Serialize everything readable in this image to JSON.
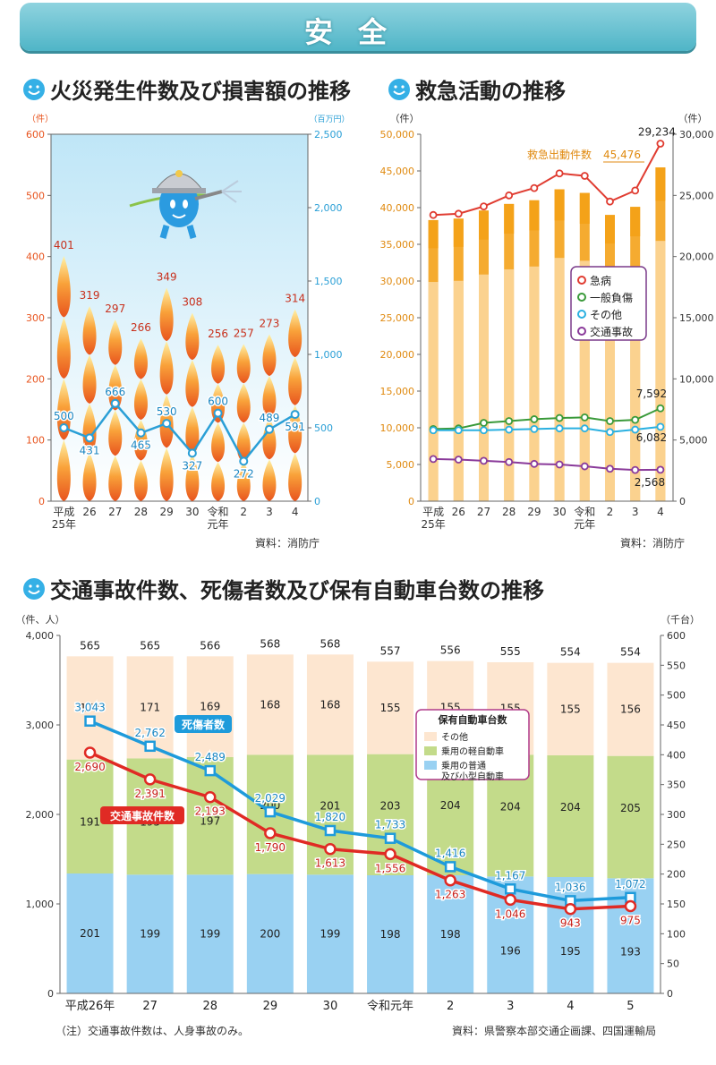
{
  "banner": {
    "title": "安全"
  },
  "fire": {
    "heading": "火災発生件数及び損害額の推移",
    "source": "資料：消防庁",
    "chart_data": {
      "type": "bar",
      "yunit_left": "（件）",
      "yunit_right": "（百万円）",
      "left_ticks": [
        "0",
        "100",
        "200",
        "300",
        "400",
        "500",
        "600"
      ],
      "right_ticks": [
        "0",
        "500",
        "1,000",
        "1,500",
        "2,000",
        "2,500"
      ],
      "left_max": 600,
      "right_max": 2500,
      "x_labels": [
        [
          "平成",
          "25年"
        ],
        [
          "26"
        ],
        [
          "27"
        ],
        [
          "28"
        ],
        [
          "29"
        ],
        [
          "30"
        ],
        [
          "令和",
          "元年"
        ],
        [
          "2"
        ],
        [
          "3"
        ],
        [
          "4"
        ]
      ],
      "fires": [
        401,
        319,
        297,
        266,
        349,
        308,
        256,
        257,
        273,
        314
      ],
      "damage": [
        500,
        431,
        666,
        465,
        530,
        327,
        600,
        272,
        489,
        591
      ],
      "colors": {
        "fire": "#e8541e",
        "damage": "#2a9fd6"
      }
    }
  },
  "ems": {
    "heading": "救急活動の推移",
    "source": "資料：消防庁",
    "chart_data": {
      "type": "bar-line",
      "yunit_left": "（件）",
      "yunit_right": "（件）",
      "left_ticks": [
        "0",
        "5,000",
        "10,000",
        "15,000",
        "20,000",
        "25,000",
        "30,000",
        "35,000",
        "40,000",
        "45,000",
        "50,000"
      ],
      "right_ticks": [
        "0",
        "5,000",
        "10,000",
        "15,000",
        "20,000",
        "25,000",
        "30,000"
      ],
      "left_max": 50000,
      "right_max": 30000,
      "x_labels": [
        [
          "平成",
          "25年"
        ],
        [
          "26"
        ],
        [
          "27"
        ],
        [
          "28"
        ],
        [
          "29"
        ],
        [
          "30"
        ],
        [
          "令和",
          "元年"
        ],
        [
          "2"
        ],
        [
          "3"
        ],
        [
          "4"
        ]
      ],
      "dispatch_label": "救急出動件数",
      "dispatch": [
        38300,
        38500,
        39600,
        40500,
        41000,
        42500,
        42000,
        39000,
        40100,
        45476
      ],
      "dispatch_label_value": "45,476",
      "series": [
        {
          "name": "急病",
          "values": [
            23400,
            23500,
            24100,
            25000,
            25600,
            26800,
            26600,
            24500,
            25400,
            29234
          ],
          "color": "#e03c31"
        },
        {
          "name": "一般負傷",
          "values": [
            5900,
            5950,
            6400,
            6550,
            6700,
            6800,
            6850,
            6550,
            6650,
            7592
          ],
          "color": "#3a9a3a"
        },
        {
          "name": "その他",
          "values": [
            5800,
            5800,
            5800,
            5850,
            5900,
            5950,
            5950,
            5650,
            5850,
            6082
          ],
          "color": "#2ab0e0"
        },
        {
          "name": "交通事故",
          "values": [
            3450,
            3400,
            3300,
            3200,
            3050,
            3000,
            2850,
            2650,
            2550,
            2568
          ],
          "color": "#8a3a9a"
        }
      ],
      "end_labels": [
        "29,234",
        "7,592",
        "6,082",
        "2,568"
      ],
      "colors": {
        "bar": "#f4a21a",
        "bar_light": "#fde3b8"
      }
    }
  },
  "traffic": {
    "heading": "交通事故件数、死傷者数及び保有自動車台数の推移",
    "source": "資料：県警察本部交通企画課、四国運輸局",
    "note": "（注）交通事故件数は、人身事故のみ。",
    "chart_data": {
      "type": "bar-line",
      "yunit_left": "（件、人）",
      "yunit_right": "（千台）",
      "left_ticks": [
        "0",
        "1,000",
        "2,000",
        "3,000",
        "4,000"
      ],
      "right_ticks": [
        "0",
        "50",
        "100",
        "150",
        "200",
        "250",
        "300",
        "350",
        "400",
        "450",
        "500",
        "550",
        "600"
      ],
      "left_max": 4000,
      "right_max": 600,
      "x_labels": [
        "平成26年",
        "27",
        "28",
        "29",
        "30",
        "令和元年",
        "2",
        "3",
        "4",
        "5"
      ],
      "vehicles_total": [
        "565",
        "565",
        "566",
        "568",
        "568",
        "557",
        "556",
        "555",
        "554",
        "554"
      ],
      "stack_regular": [
        201,
        199,
        199,
        200,
        199,
        198,
        198,
        196,
        195,
        193
      ],
      "stack_kei": [
        191,
        195,
        197,
        200,
        201,
        203,
        204,
        204,
        204,
        205
      ],
      "stack_other": [
        173,
        171,
        169,
        168,
        168,
        155,
        155,
        155,
        155,
        156
      ],
      "casualties": [
        3043,
        2762,
        2489,
        2029,
        1820,
        1733,
        1416,
        1167,
        1036,
        1072
      ],
      "accidents": [
        2690,
        2391,
        2193,
        1790,
        1613,
        1556,
        1263,
        1046,
        943,
        975
      ],
      "casualties_label": "死傷者数",
      "accidents_label": "交通事故件数",
      "legend": {
        "title": "保有自動車台数",
        "items": [
          "その他",
          "乗用の軽自動車",
          [
            "乗用の普通",
            "及び小型自動車"
          ]
        ]
      },
      "colors": {
        "regular": "#99d1f2",
        "kei": "#c3db8a",
        "other": "#fde6d0",
        "casualties": "#1e9bdb",
        "accidents": "#e02a24"
      }
    }
  }
}
